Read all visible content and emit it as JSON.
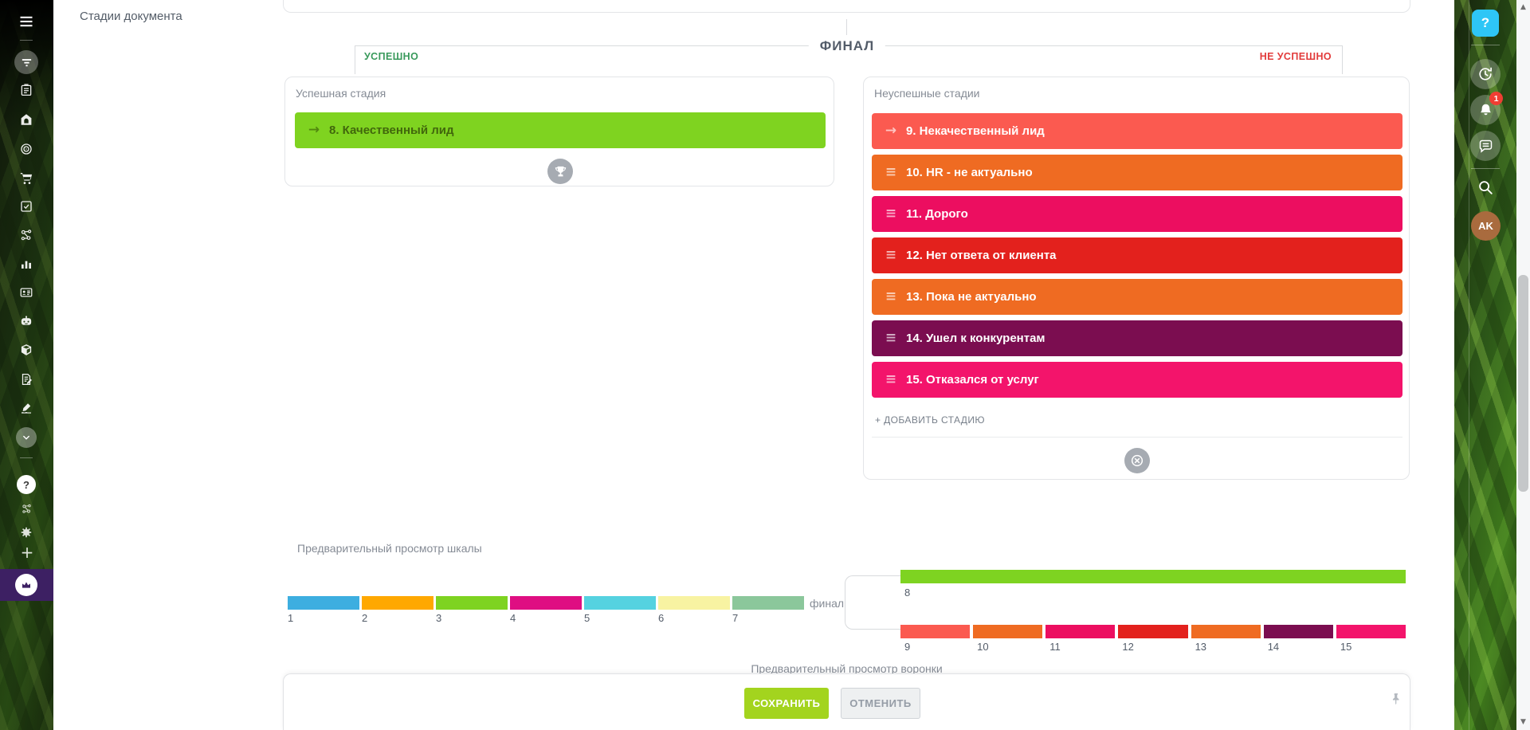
{
  "page": {
    "title": "Стадии документа"
  },
  "final_section": {
    "final_label": "ФИНАЛ",
    "success_tab": "УСПЕШНО",
    "fail_tab": "НЕ УСПЕШНО",
    "success_color": "#3a9a5c",
    "fail_color": "#e23b3b"
  },
  "success_card": {
    "title": "Успешная стадия",
    "stage": {
      "label": "8. Качественный лид",
      "color": "#7fd320",
      "text_color": "#41670c",
      "icon": "arrow-right"
    }
  },
  "fail_card": {
    "title": "Неуспешные стадии",
    "stages": [
      {
        "label": "9. Некачественный лид",
        "color": "#fb5a50",
        "icon": "arrow-right"
      },
      {
        "label": "10. HR - не актуально",
        "color": "#ef6b22",
        "icon": "drag"
      },
      {
        "label": "11. Дорого",
        "color": "#ec0e60",
        "icon": "drag"
      },
      {
        "label": "12. Нет ответа от клиента",
        "color": "#e3211d",
        "icon": "drag"
      },
      {
        "label": "13. Пока не актуально",
        "color": "#ef6b22",
        "icon": "drag"
      },
      {
        "label": "14. Ушел к конкурентам",
        "color": "#7b0d50",
        "icon": "drag"
      },
      {
        "label": "15. Отказался от услуг",
        "color": "#f3146b",
        "icon": "drag"
      }
    ],
    "add_stage_label": "+ ДОБАВИТЬ СТАДИЮ"
  },
  "scale_preview": {
    "title": "Предварительный просмотр шкалы",
    "final_label": "финал",
    "main_segments": [
      {
        "label": "1",
        "color": "#3daee0"
      },
      {
        "label": "2",
        "color": "#ffa800"
      },
      {
        "label": "3",
        "color": "#7ed321"
      },
      {
        "label": "4",
        "color": "#df0e82"
      },
      {
        "label": "5",
        "color": "#55d2e0"
      },
      {
        "label": "6",
        "color": "#f8f3a2"
      },
      {
        "label": "7",
        "color": "#8bc79b"
      }
    ],
    "success_segment": {
      "label": "8",
      "color": "#7ed321"
    },
    "fail_segments": [
      {
        "label": "9",
        "color": "#fb5a50"
      },
      {
        "label": "10",
        "color": "#ef6b22"
      },
      {
        "label": "11",
        "color": "#ec0e60"
      },
      {
        "label": "12",
        "color": "#e3211d"
      },
      {
        "label": "13",
        "color": "#ef6b22"
      },
      {
        "label": "14",
        "color": "#7b0d50"
      },
      {
        "label": "15",
        "color": "#f3146b"
      }
    ]
  },
  "funnel_preview": {
    "title": "Предварительный просмотр воронки"
  },
  "footer": {
    "save_label": "СОХРАНИТЬ",
    "cancel_label": "ОТМЕНИТЬ",
    "save_color": "#a3d41e"
  },
  "left_sidebar": {
    "items": [
      "menu",
      "funnel",
      "tasks",
      "store",
      "target",
      "cart",
      "todo",
      "processes",
      "analytics",
      "contacts",
      "assistant",
      "warehouse",
      "documents",
      "sign",
      "more",
      "help",
      "invite",
      "settings",
      "add",
      "upgrade"
    ],
    "upgrade_color": "#3d2063"
  },
  "right_toolbar": {
    "help_label": "?",
    "help_color": "#2ec6f6",
    "notification_count": "1",
    "badge_color": "#ef3e33",
    "avatar_initials": "AK",
    "avatar_color": "#a96b3e"
  }
}
